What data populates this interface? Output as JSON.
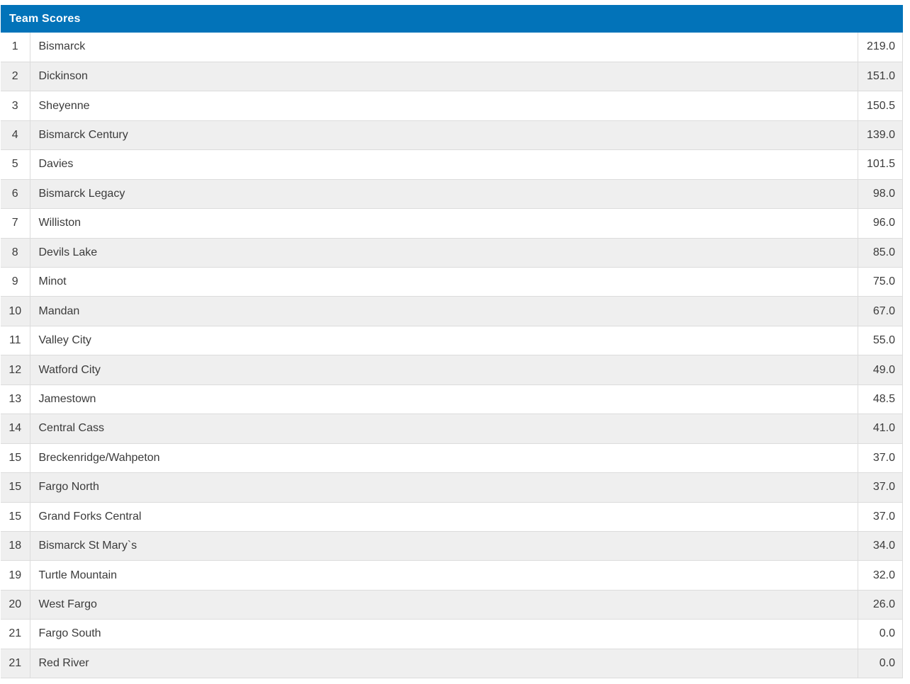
{
  "table": {
    "title": "Team Scores",
    "colors": {
      "header_bg": "#0273b9",
      "header_text": "#ffffff",
      "row_alt_bg": "#efefef",
      "border": "#dcdcdc",
      "text": "#3b3b3b",
      "page_bg": "#ffffff"
    },
    "columns": [
      "rank",
      "team",
      "score"
    ],
    "rows": [
      {
        "rank": "1",
        "team": "Bismarck",
        "score": "219.0"
      },
      {
        "rank": "2",
        "team": "Dickinson",
        "score": "151.0"
      },
      {
        "rank": "3",
        "team": "Sheyenne",
        "score": "150.5"
      },
      {
        "rank": "4",
        "team": "Bismarck Century",
        "score": "139.0"
      },
      {
        "rank": "5",
        "team": "Davies",
        "score": "101.5"
      },
      {
        "rank": "6",
        "team": "Bismarck Legacy",
        "score": "98.0"
      },
      {
        "rank": "7",
        "team": "Williston",
        "score": "96.0"
      },
      {
        "rank": "8",
        "team": "Devils Lake",
        "score": "85.0"
      },
      {
        "rank": "9",
        "team": "Minot",
        "score": "75.0"
      },
      {
        "rank": "10",
        "team": "Mandan",
        "score": "67.0"
      },
      {
        "rank": "11",
        "team": "Valley City",
        "score": "55.0"
      },
      {
        "rank": "12",
        "team": "Watford City",
        "score": "49.0"
      },
      {
        "rank": "13",
        "team": "Jamestown",
        "score": "48.5"
      },
      {
        "rank": "14",
        "team": "Central Cass",
        "score": "41.0"
      },
      {
        "rank": "15",
        "team": "Breckenridge/Wahpeton",
        "score": "37.0"
      },
      {
        "rank": "15",
        "team": "Fargo North",
        "score": "37.0"
      },
      {
        "rank": "15",
        "team": "Grand Forks Central",
        "score": "37.0"
      },
      {
        "rank": "18",
        "team": "Bismarck St Mary`s",
        "score": "34.0"
      },
      {
        "rank": "19",
        "team": "Turtle Mountain",
        "score": "32.0"
      },
      {
        "rank": "20",
        "team": "West Fargo",
        "score": "26.0"
      },
      {
        "rank": "21",
        "team": "Fargo South",
        "score": "0.0"
      },
      {
        "rank": "21",
        "team": "Red River",
        "score": "0.0"
      }
    ]
  }
}
